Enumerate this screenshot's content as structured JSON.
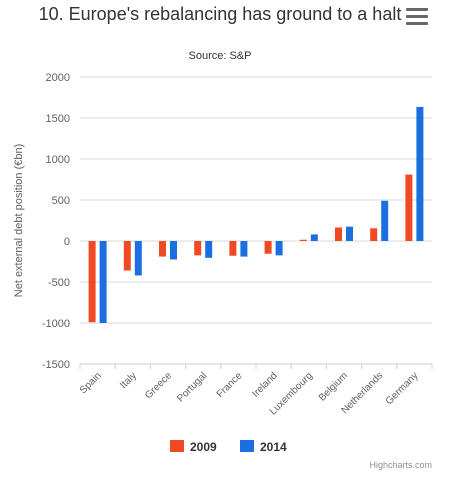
{
  "header": {
    "title": "10. Europe's rebalancing has ground to a halt",
    "subtitle": "Source: S&P",
    "menu_icon": "hamburger-menu-icon"
  },
  "credit": "Highcharts.com",
  "chart_data": {
    "type": "bar",
    "title": "10. Europe's rebalancing has ground to a halt",
    "subtitle": "Source: S&P",
    "ylabel": "Net external debt position (€bn)",
    "xlabel": "",
    "ylim": [
      -1500,
      2000
    ],
    "yticks": [
      -1500,
      -1000,
      -500,
      0,
      500,
      1000,
      1500,
      2000
    ],
    "grid": true,
    "legend_position": "bottom-center",
    "categories": [
      "Spain",
      "Italy",
      "Greece",
      "Portugal",
      "France",
      "Ireland",
      "Luxembourg",
      "Belgium",
      "Netherlands",
      "Germany"
    ],
    "series": [
      {
        "name": "2009",
        "color": "#f04a23",
        "values": [
          -990,
          -360,
          -190,
          -175,
          -180,
          -155,
          15,
          165,
          155,
          810
        ]
      },
      {
        "name": "2014",
        "color": "#1b6fe0",
        "values": [
          -1000,
          -420,
          -225,
          -205,
          -190,
          -175,
          80,
          175,
          490,
          1635
        ]
      }
    ]
  }
}
